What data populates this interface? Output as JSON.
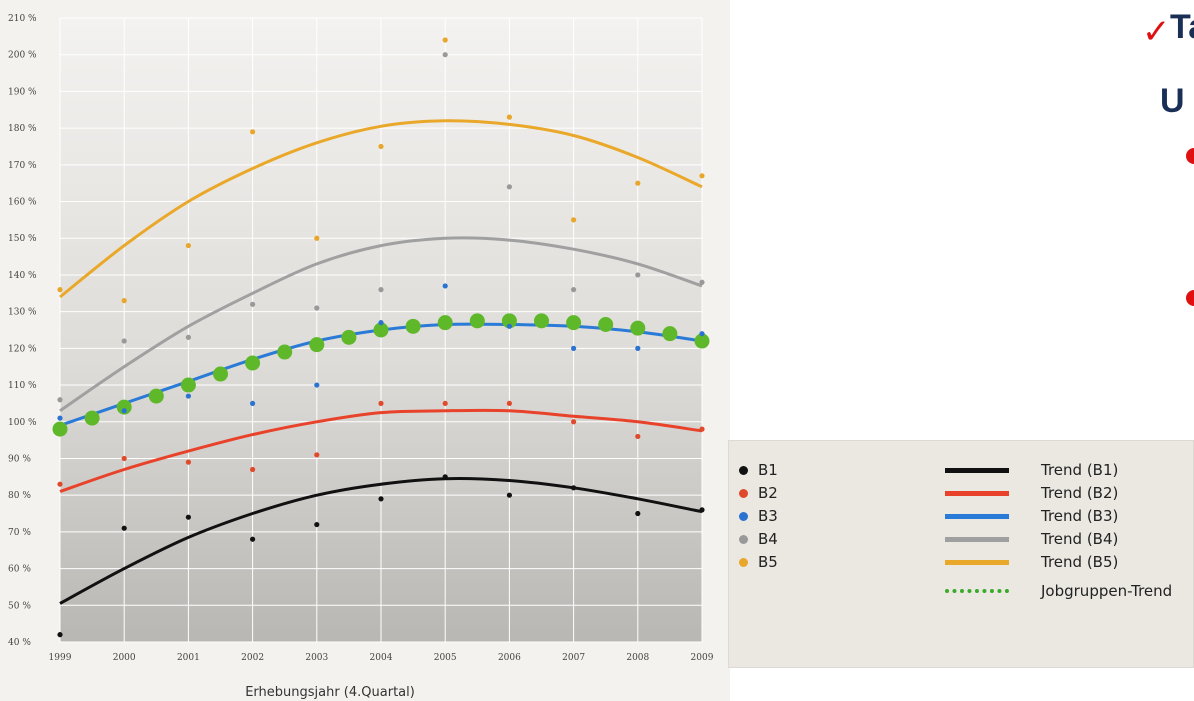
{
  "chart_data": {
    "type": "scatter",
    "xlabel": "Erhebungsjahr (4.Quartal)",
    "ylabel": "",
    "x_ticks": [
      "1999",
      "2000",
      "2001",
      "2002",
      "2003",
      "2004",
      "2005",
      "2006",
      "2007",
      "2008",
      "2009"
    ],
    "y_ticks": [
      "40 %",
      "50 %",
      "60 %",
      "70 %",
      "80 %",
      "90 %",
      "100 %",
      "110 %",
      "120 %",
      "130 %",
      "140 %",
      "150 %",
      "160 %",
      "170 %",
      "180 %",
      "190 %",
      "200 %",
      "210 %"
    ],
    "xlim": [
      1999,
      2009
    ],
    "ylim": [
      40,
      210
    ],
    "grid": true,
    "legend_placement": "outside-right-bottom",
    "series": [
      {
        "name": "B1",
        "color": "#111111",
        "x": [
          1999,
          2000,
          2001,
          2002,
          2003,
          2004,
          2005,
          2006,
          2007,
          2008,
          2009
        ],
        "values": [
          42,
          71,
          74,
          68,
          72,
          79,
          85,
          80,
          82,
          75,
          76
        ]
      },
      {
        "name": "B2",
        "color": "#e04a2a",
        "x": [
          1999,
          2000,
          2001,
          2002,
          2003,
          2004,
          2005,
          2006,
          2007,
          2008,
          2009
        ],
        "values": [
          83,
          90,
          89,
          87,
          91,
          105,
          105,
          105,
          100,
          96,
          98
        ]
      },
      {
        "name": "B3",
        "color": "#2a73d0",
        "x": [
          1999,
          2000,
          2001,
          2002,
          2003,
          2004,
          2005,
          2006,
          2007,
          2008,
          2009
        ],
        "values": [
          101,
          103,
          107,
          105,
          110,
          127,
          137,
          126,
          120,
          120,
          124
        ]
      },
      {
        "name": "B4",
        "color": "#999999",
        "x": [
          1999,
          2000,
          2001,
          2002,
          2003,
          2004,
          2005,
          2006,
          2007,
          2008,
          2009
        ],
        "values": [
          106,
          122,
          123,
          132,
          131,
          136,
          200,
          164,
          136,
          140,
          138
        ]
      },
      {
        "name": "B5",
        "color": "#e8a62a",
        "x": [
          1999,
          2000,
          2001,
          2002,
          2003,
          2004,
          2005,
          2006,
          2007,
          2008,
          2009
        ],
        "values": [
          136,
          133,
          148,
          179,
          150,
          175,
          204,
          183,
          155,
          165,
          167
        ]
      }
    ],
    "trends": [
      {
        "name": "Trend (B1)",
        "color": "#111111",
        "x": [
          1999,
          2000,
          2001,
          2002,
          2003,
          2004,
          2005,
          2006,
          2007,
          2008,
          2009
        ],
        "values": [
          50.5,
          60,
          68.5,
          75,
          80,
          83,
          84.5,
          84,
          82,
          79,
          75.5
        ]
      },
      {
        "name": "Trend (B2)",
        "color": "#e8422a",
        "x": [
          1999,
          2000,
          2001,
          2002,
          2003,
          2004,
          2005,
          2006,
          2007,
          2008,
          2009
        ],
        "values": [
          81,
          87,
          92,
          96.5,
          100,
          102.5,
          103,
          103,
          101.5,
          100,
          97.5
        ]
      },
      {
        "name": "Trend (B3)",
        "color": "#2a7ad8",
        "x": [
          1999,
          2000,
          2001,
          2002,
          2003,
          2004,
          2005,
          2006,
          2007,
          2008,
          2009
        ],
        "values": [
          99,
          105,
          111,
          117,
          122,
          125,
          126.5,
          126.5,
          126,
          124.5,
          122
        ]
      },
      {
        "name": "Trend (B4)",
        "color": "#a0a0a0",
        "x": [
          1999,
          2000,
          2001,
          2002,
          2003,
          2004,
          2005,
          2006,
          2007,
          2008,
          2009
        ],
        "values": [
          103,
          115,
          126,
          135,
          143,
          148,
          150,
          149.5,
          147,
          143,
          137
        ]
      },
      {
        "name": "Trend (B5)",
        "color": "#eaa82a",
        "x": [
          1999,
          2000,
          2001,
          2002,
          2003,
          2004,
          2005,
          2006,
          2007,
          2008,
          2009
        ],
        "values": [
          134,
          148,
          160,
          169,
          176,
          180.5,
          182,
          181,
          178,
          172,
          164
        ]
      }
    ],
    "group_trend": {
      "name": "Jobgruppen-Trend",
      "color": "#5fb82a",
      "x": [
        1999,
        1999.5,
        2000,
        2000.5,
        2001,
        2001.5,
        2002,
        2002.5,
        2003,
        2003.5,
        2004,
        2004.5,
        2005,
        2005.5,
        2006,
        2006.5,
        2007,
        2007.5,
        2008,
        2008.5,
        2009
      ],
      "values": [
        98,
        101,
        104,
        107,
        110,
        113,
        116,
        119,
        121,
        123,
        125,
        126,
        127,
        127.5,
        127.5,
        127.5,
        127,
        126.5,
        125.5,
        124,
        122
      ]
    }
  },
  "legend": {
    "markers": [
      {
        "label": "B1",
        "color": "#111111"
      },
      {
        "label": "B2",
        "color": "#e04a2a"
      },
      {
        "label": "B3",
        "color": "#2a73d0"
      },
      {
        "label": "B4",
        "color": "#999999"
      },
      {
        "label": "B5",
        "color": "#e8a62a"
      }
    ],
    "lines": [
      {
        "label": "Trend (B1)",
        "color": "#111111"
      },
      {
        "label": "Trend (B2)",
        "color": "#e8422a"
      },
      {
        "label": "Trend (B3)",
        "color": "#2a7ad8"
      },
      {
        "label": "Trend (B4)",
        "color": "#a0a0a0"
      },
      {
        "label": "Trend (B5)",
        "color": "#eaa82a"
      }
    ],
    "group_trend_label": "Jobgruppen-Trend",
    "group_trend_color": "#3aaa2a"
  },
  "slide": {
    "arrow_icon": "check-arrow-icon",
    "line1": "Ta",
    "line2": "U",
    "bullet_color": "#e01010"
  }
}
